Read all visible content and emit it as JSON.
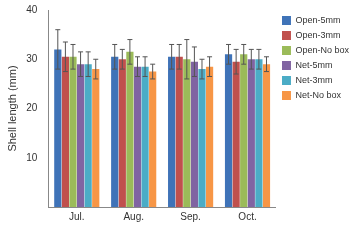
{
  "chart_data": {
    "type": "bar",
    "y_label": "Shell length (mm)",
    "categories": [
      "Jul.",
      "Aug.",
      "Sep.",
      "Oct."
    ],
    "series": [
      {
        "name": "Open-5mm",
        "color": "#3f73b8",
        "values": [
          32,
          30.5,
          30.5,
          31
        ],
        "errors": [
          4,
          2.5,
          2.5,
          2
        ]
      },
      {
        "name": "Open-3mm",
        "color": "#c0504d",
        "values": [
          30.5,
          30,
          30.5,
          29.5
        ],
        "errors": [
          3,
          2,
          2.5,
          2.5
        ]
      },
      {
        "name": "Open-No box",
        "color": "#9bbb59",
        "values": [
          30.5,
          31.5,
          30,
          31
        ],
        "errors": [
          2.5,
          2.5,
          4,
          2
        ]
      },
      {
        "name": "Net-5mm",
        "color": "#8064a2",
        "values": [
          29,
          28.5,
          29.5,
          30
        ],
        "errors": [
          2.5,
          2,
          3,
          2
        ]
      },
      {
        "name": "Net-3mm",
        "color": "#4bacc6",
        "values": [
          29,
          28.5,
          28,
          30
        ],
        "errors": [
          2.5,
          2,
          2,
          2
        ]
      },
      {
        "name": "Net-No box",
        "color": "#f79646",
        "values": [
          28,
          27.5,
          28.5,
          29
        ],
        "errors": [
          2,
          1.5,
          2,
          1.5
        ]
      }
    ],
    "ylim": [
      0,
      40
    ],
    "yticks": [
      10,
      20,
      30,
      40
    ],
    "grid": false,
    "legend": "right"
  }
}
